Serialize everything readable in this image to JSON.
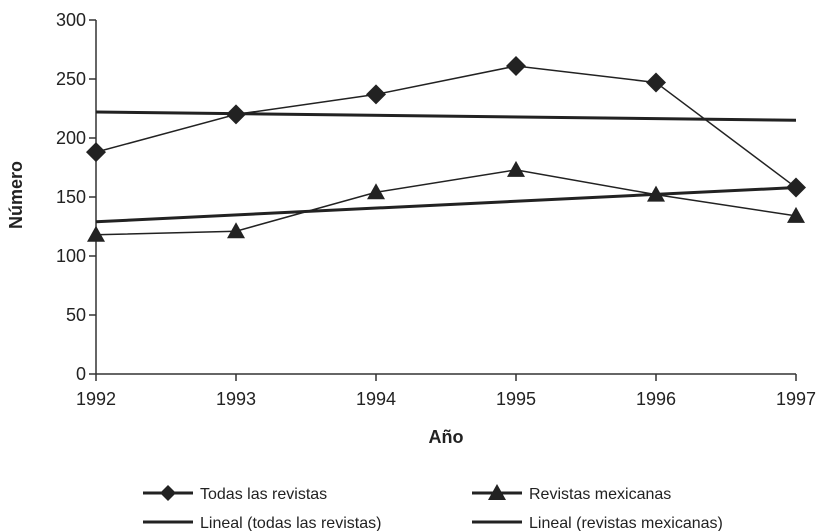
{
  "chart_data": {
    "type": "line",
    "title": "",
    "xlabel": "Año",
    "ylabel": "Número",
    "categories": [
      "1992",
      "1993",
      "1994",
      "1995",
      "1996",
      "1997"
    ],
    "x": [
      1992,
      1993,
      1994,
      1995,
      1996,
      1997
    ],
    "ylim": [
      0,
      300
    ],
    "yticks": [
      0,
      50,
      100,
      150,
      200,
      250,
      300
    ],
    "grid": false,
    "legend_position": "bottom",
    "series": [
      {
        "name": "Todas las revistas",
        "values": [
          188,
          220,
          237,
          261,
          247,
          158
        ],
        "marker": "diamond",
        "color": "#222222"
      },
      {
        "name": "Revistas mexicanas",
        "values": [
          118,
          121,
          154,
          173,
          152,
          134
        ],
        "marker": "triangle",
        "color": "#222222"
      }
    ],
    "trendlines": [
      {
        "name": "Lineal (todas las revistas)",
        "values": [
          222,
          215
        ],
        "color": "#222222"
      },
      {
        "name": "Lineal (revistas mexicanas)",
        "values": [
          129,
          158
        ],
        "color": "#222222"
      }
    ]
  }
}
